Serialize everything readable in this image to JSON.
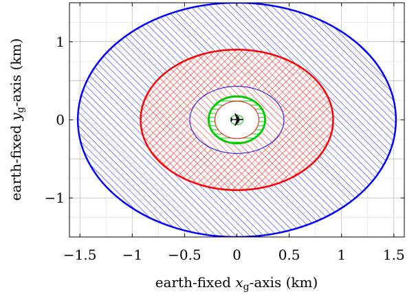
{
  "chart_data": {
    "type": "area",
    "title": "",
    "xlabel": "earth-fixed x_g-axis (km)",
    "ylabel": "earth-fixed y_g-axis (km)",
    "xlabel_parts": {
      "before": "earth-fixed ",
      "var": "x",
      "sub": "g",
      "after": "-axis (km)"
    },
    "ylabel_parts": {
      "before": "earth-fixed ",
      "var": "y",
      "sub": "g",
      "after": "-axis (km)"
    },
    "xlim": [
      -1.6,
      1.6
    ],
    "ylim": [
      -1.5,
      1.5
    ],
    "x_ticks": [
      -1.5,
      -1,
      -0.5,
      0,
      0.5,
      1,
      1.5
    ],
    "x_tick_labels": [
      "−1.5",
      "−1",
      "−0.5",
      "0",
      "0.5",
      "1",
      "1.5"
    ],
    "y_ticks": [
      -1,
      0,
      1
    ],
    "y_tick_labels": [
      "−1",
      "0",
      "1"
    ],
    "grid": true,
    "regions": [
      {
        "rx": 1.52,
        "ry": 1.5,
        "stroke": "#0000ff",
        "stroke_width": 2.5,
        "hatch": "diagonal",
        "hatch_color": "#0000ff"
      },
      {
        "rx": 0.92,
        "ry": 0.9,
        "stroke": "#ff0000",
        "stroke_width": 2.5,
        "hatch": "crosshatch",
        "hatch_color": "#ff0000"
      },
      {
        "rx": 0.45,
        "ry": 0.43,
        "stroke": "#0000ff",
        "stroke_width": 1,
        "hatch": "diagonal",
        "hatch_color": "#ff0000"
      },
      {
        "rx": 0.27,
        "ry": 0.3,
        "stroke": "#00cc00",
        "stroke_width": 3,
        "hatch": "horizontal",
        "hatch_color": "#00cc00"
      },
      {
        "rx": 0.21,
        "ry": 0.24,
        "stroke": "#ff0000",
        "stroke_width": 1,
        "hatch": "none",
        "hatch_color": "#ff0000"
      },
      {
        "rx": 0.06,
        "ry": 0.06,
        "stroke": "#00cc00",
        "stroke_width": 1,
        "hatch": "none",
        "hatch_color": "#00cc00"
      }
    ],
    "marker": {
      "x": 0,
      "y": 0,
      "icon": "airplane-icon",
      "glyph": "✈"
    }
  }
}
